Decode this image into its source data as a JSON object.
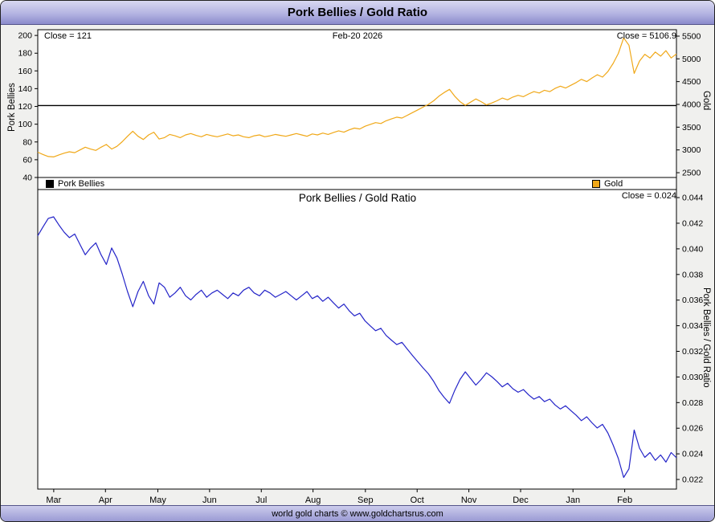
{
  "window": {
    "title": "Pork Bellies / Gold Ratio",
    "footer": "world gold charts © www.goldchartsrus.com"
  },
  "upper_panel": {
    "annotation_left": "Close = 121",
    "annotation_date": "Feb-20  2026",
    "annotation_right": "Close = 5106.9",
    "left_axis_title": "Pork Bellies",
    "right_axis_title": "Gold",
    "legend": [
      {
        "label": "Pork Bellies",
        "color": "#000000"
      },
      {
        "label": "Gold",
        "color": "#f0a818"
      }
    ]
  },
  "lower_panel": {
    "title": "Pork Bellies  /  Gold Ratio",
    "annotation_right": "Close = 0.024",
    "right_axis_title": "Pork Bellies / Gold Ratio"
  },
  "chart_data": {
    "type": "line",
    "title": "Pork Bellies / Gold Ratio",
    "date_annotation": "Feb-20 2026",
    "x_axis": {
      "month_labels": [
        "Mar",
        "Apr",
        "May",
        "Jun",
        "Jul",
        "Aug",
        "Sep",
        "Oct",
        "Nov",
        "Dec",
        "Jan",
        "Feb"
      ],
      "month_fracs": [
        0.025,
        0.106,
        0.188,
        0.269,
        0.35,
        0.431,
        0.513,
        0.594,
        0.675,
        0.756,
        0.838,
        0.919
      ]
    },
    "upper_panel": {
      "left_axis": {
        "title": "Pork Bellies",
        "ticks": [
          40,
          60,
          80,
          100,
          120,
          140,
          160,
          180,
          200
        ],
        "range": [
          40,
          206.4
        ]
      },
      "right_axis": {
        "title": "Gold",
        "ticks": [
          2500,
          3000,
          3500,
          4000,
          4500,
          5000,
          5500
        ],
        "range": [
          2395,
          5640
        ]
      },
      "series": [
        {
          "name": "Pork Bellies",
          "color": "#000000",
          "axis": "left",
          "type": "constant",
          "value": 121,
          "close": 121
        },
        {
          "name": "Gold",
          "color": "#f0a818",
          "axis": "right",
          "close": 5106.9,
          "values": [
            2950,
            2900,
            2855,
            2847,
            2890,
            2930,
            2960,
            2940,
            3000,
            3060,
            3020,
            2990,
            3060,
            3120,
            3020,
            3080,
            3180,
            3300,
            3410,
            3300,
            3230,
            3330,
            3390,
            3240,
            3270,
            3340,
            3310,
            3270,
            3330,
            3360,
            3320,
            3290,
            3340,
            3310,
            3290,
            3320,
            3350,
            3310,
            3330,
            3290,
            3270,
            3310,
            3330,
            3290,
            3310,
            3340,
            3320,
            3300,
            3330,
            3360,
            3330,
            3300,
            3350,
            3330,
            3370,
            3340,
            3380,
            3420,
            3390,
            3440,
            3480,
            3460,
            3520,
            3560,
            3600,
            3580,
            3640,
            3680,
            3720,
            3700,
            3760,
            3820,
            3880,
            3940,
            4000,
            4080,
            4180,
            4260,
            4330,
            4180,
            4060,
            3980,
            4050,
            4120,
            4060,
            3990,
            4030,
            4080,
            4140,
            4100,
            4160,
            4200,
            4170,
            4230,
            4280,
            4250,
            4310,
            4280,
            4350,
            4400,
            4360,
            4420,
            4480,
            4550,
            4500,
            4580,
            4650,
            4600,
            4720,
            4900,
            5120,
            5460,
            5300,
            4680,
            4950,
            5100,
            5020,
            5150,
            5060,
            5180,
            5020,
            5106.9
          ]
        }
      ]
    },
    "lower_panel": {
      "right_axis": {
        "title": "Pork Bellies / Gold Ratio",
        "ticks": [
          0.022,
          0.024,
          0.026,
          0.028,
          0.03,
          0.032,
          0.034,
          0.036,
          0.038,
          0.04,
          0.042,
          0.044
        ],
        "range": [
          0.02125,
          0.04463
        ],
        "tick_decimals": 3
      },
      "series": [
        {
          "name": "Pork Bellies / Gold Ratio",
          "color": "#2424c8",
          "derived_from": "pork_bellies_close / gold_values",
          "close": 0.024
        }
      ]
    }
  }
}
